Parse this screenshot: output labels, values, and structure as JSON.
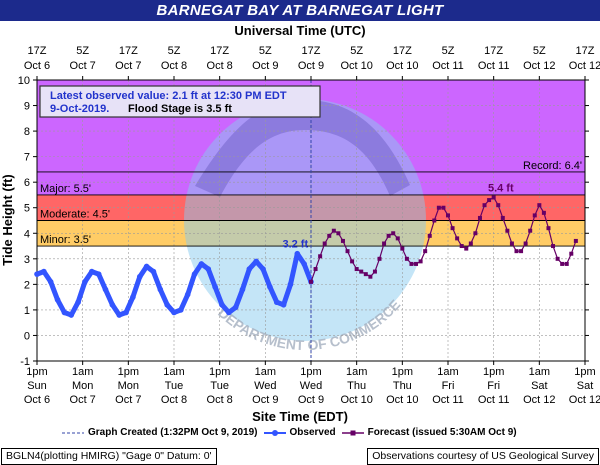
{
  "title": "BARNEGAT BAY AT BARNEGAT LIGHT",
  "top_axis_title": "Universal Time (UTC)",
  "bottom_axis_title": "Site Time (EDT)",
  "y_axis_title": "Tide Height (ft)",
  "info_box": {
    "line1": "Latest observed value: 2.1 ft at 12:30 PM EDT",
    "line2_date": "9-Oct-2019.",
    "line2_rest": "Flood Stage is 3.5 ft"
  },
  "legend": {
    "graph_created": "Graph Created (1:32PM Oct 9, 2019)",
    "observed": "Observed",
    "forecast": "Forecast (issued 5:30AM Oct 9)"
  },
  "footer_left": "BGLN4(plotting HMIRG) \"Gage 0\" Datum: 0'",
  "footer_right": "Observations courtesy of US Geological Survey",
  "watermark": "DEPARTMENT OF COMMERCE",
  "chart_data": {
    "type": "line",
    "ylim": [
      -1,
      10
    ],
    "yticks": [
      -1,
      0,
      1,
      2,
      3,
      4,
      5,
      6,
      7,
      8,
      9,
      10
    ],
    "x_unit": "hours_edt_from_1pm_oct6",
    "xlim": [
      0,
      240
    ],
    "bottom_ticks": [
      {
        "top": "1pm",
        "mid": "Sun",
        "bottom": "Oct 6"
      },
      {
        "top": "1am",
        "mid": "Mon",
        "bottom": "Oct 7"
      },
      {
        "top": "1pm",
        "mid": "Mon",
        "bottom": "Oct 7"
      },
      {
        "top": "1am",
        "mid": "Tue",
        "bottom": "Oct 8"
      },
      {
        "top": "1pm",
        "mid": "Tue",
        "bottom": "Oct 8"
      },
      {
        "top": "1am",
        "mid": "Wed",
        "bottom": "Oct 9"
      },
      {
        "top": "1pm",
        "mid": "Wed",
        "bottom": "Oct 9"
      },
      {
        "top": "1am",
        "mid": "Thu",
        "bottom": "Oct 10"
      },
      {
        "top": "1pm",
        "mid": "Thu",
        "bottom": "Oct 10"
      },
      {
        "top": "1am",
        "mid": "Fri",
        "bottom": "Oct 11"
      },
      {
        "top": "1pm",
        "mid": "Fri",
        "bottom": "Oct 11"
      },
      {
        "top": "1am",
        "mid": "Sat",
        "bottom": "Oct 12"
      },
      {
        "top": "1pm",
        "mid": "Sat",
        "bottom": "Oct 12"
      }
    ],
    "top_ticks": [
      {
        "time": "17Z",
        "date": "Oct 6"
      },
      {
        "time": "5Z",
        "date": "Oct 7"
      },
      {
        "time": "17Z",
        "date": "Oct 7"
      },
      {
        "time": "5Z",
        "date": "Oct 8"
      },
      {
        "time": "17Z",
        "date": "Oct 8"
      },
      {
        "time": "5Z",
        "date": "Oct 9"
      },
      {
        "time": "17Z",
        "date": "Oct 9"
      },
      {
        "time": "5Z",
        "date": "Oct 10"
      },
      {
        "time": "17Z",
        "date": "Oct 10"
      },
      {
        "time": "5Z",
        "date": "Oct 11"
      },
      {
        "time": "17Z",
        "date": "Oct 11"
      },
      {
        "time": "5Z",
        "date": "Oct 12"
      },
      {
        "time": "17Z",
        "date": "Oct 12"
      }
    ],
    "flood_categories": [
      {
        "name": "Minor",
        "label": "Minor: 3.5'",
        "from": 3.5,
        "to": 4.5,
        "color": "#ffcc66"
      },
      {
        "name": "Moderate",
        "label": "Moderate: 4.5'",
        "from": 4.5,
        "to": 5.5,
        "color": "#ff6666"
      },
      {
        "name": "Major",
        "label": "Major: 5.5'",
        "from": 5.5,
        "to": 10,
        "color": "#cc66ff"
      }
    ],
    "record": {
      "label": "Record: 6.4'",
      "value": 6.4
    },
    "graph_created_hour": 120,
    "annotations": [
      {
        "text": "3.2 ft",
        "x": 114,
        "y": 3.2
      },
      {
        "text": "5.4 ft",
        "x": 204,
        "y": 5.4
      }
    ],
    "observed": {
      "name": "Observed",
      "color": "#3355ff",
      "x": [
        0,
        3,
        6,
        9,
        12,
        15,
        18,
        21,
        24,
        27,
        30,
        33,
        36,
        39,
        42,
        45,
        48,
        51,
        54,
        57,
        60,
        63,
        66,
        69,
        72,
        75,
        78,
        81,
        84,
        87,
        90,
        93,
        96,
        99,
        102,
        105,
        108,
        111,
        114,
        117,
        120
      ],
      "y": [
        2.4,
        2.5,
        2.1,
        1.4,
        0.9,
        0.8,
        1.3,
        2.1,
        2.5,
        2.4,
        1.8,
        1.2,
        0.8,
        0.9,
        1.5,
        2.3,
        2.7,
        2.5,
        1.8,
        1.2,
        0.9,
        1.0,
        1.6,
        2.4,
        2.8,
        2.6,
        1.9,
        1.2,
        0.9,
        1.1,
        1.8,
        2.6,
        2.9,
        2.6,
        1.9,
        1.3,
        1.2,
        2.0,
        3.2,
        2.8,
        2.1
      ]
    },
    "forecast": {
      "name": "Forecast",
      "color": "#660066",
      "x": [
        120,
        122,
        124,
        126,
        128,
        130,
        132,
        134,
        136,
        138,
        140,
        142,
        144,
        146,
        148,
        150,
        152,
        154,
        156,
        158,
        160,
        162,
        164,
        166,
        168,
        170,
        172,
        174,
        176,
        178,
        180,
        182,
        184,
        186,
        188,
        190,
        192,
        194,
        196,
        198,
        200,
        202,
        204,
        206,
        208,
        210,
        212,
        214,
        216,
        218,
        220,
        222,
        224,
        226,
        228,
        230,
        232,
        234,
        236
      ],
      "y": [
        2.1,
        2.6,
        3.1,
        3.6,
        3.9,
        4.1,
        4.0,
        3.7,
        3.3,
        2.9,
        2.6,
        2.5,
        2.4,
        2.3,
        2.5,
        3.0,
        3.6,
        3.9,
        4.0,
        3.8,
        3.4,
        3.0,
        2.8,
        2.8,
        2.9,
        3.3,
        3.9,
        4.5,
        5.0,
        5.0,
        4.7,
        4.2,
        3.8,
        3.5,
        3.4,
        3.6,
        4.0,
        4.6,
        5.1,
        5.3,
        5.4,
        5.1,
        4.6,
        4.1,
        3.6,
        3.3,
        3.3,
        3.6,
        4.1,
        4.7,
        5.1,
        4.8,
        4.2,
        3.5,
        3.0,
        2.8,
        2.8,
        3.2,
        3.7
      ]
    }
  }
}
